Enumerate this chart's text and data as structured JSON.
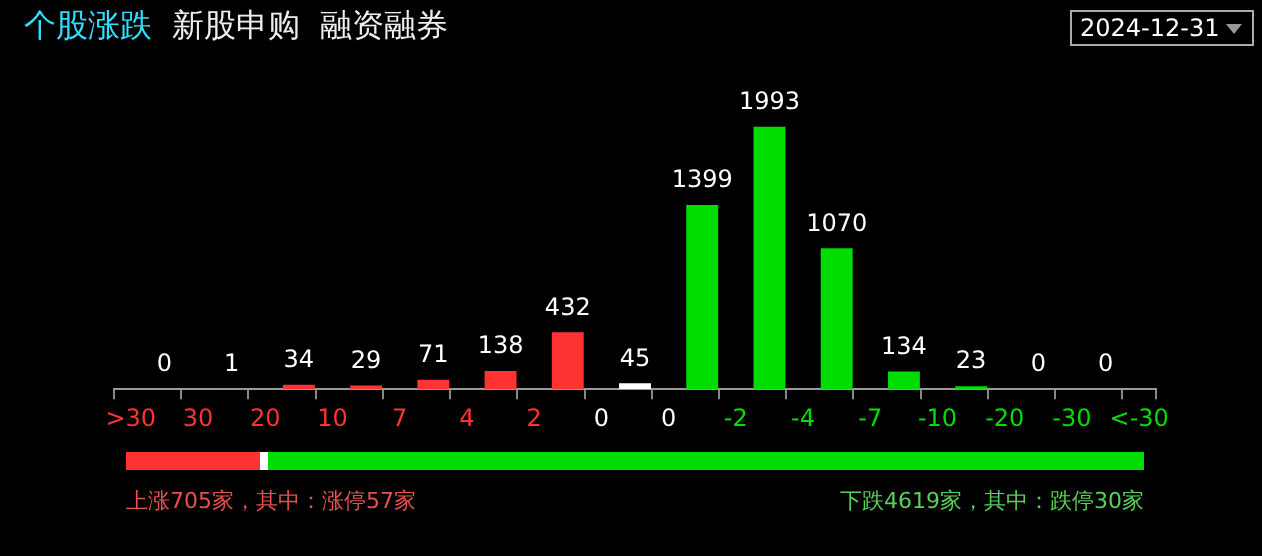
{
  "chart_data": {
    "type": "bar",
    "title": "个股涨跌",
    "categories": [
      ">30",
      null,
      "30",
      null,
      "20",
      null,
      "10",
      null,
      "7",
      null,
      "4",
      null,
      "2",
      null,
      "0",
      null,
      "0",
      null,
      "-2",
      null,
      "-4",
      null,
      "-7",
      null,
      "-10",
      null,
      "-20",
      null,
      "-30",
      null,
      "<-30"
    ],
    "values": [
      null,
      0,
      null,
      1,
      null,
      34,
      null,
      29,
      null,
      71,
      null,
      138,
      null,
      432,
      null,
      45,
      null,
      1399,
      null,
      1993,
      null,
      1070,
      null,
      134,
      null,
      23,
      null,
      0,
      null,
      0,
      null
    ],
    "colors": [
      "#ff3333",
      "#ff3333",
      "#ff3333",
      "#ff3333",
      "#ff3333",
      "#ff3333",
      "#ff3333",
      "#ff3333",
      "#ff3333",
      "#ff3333",
      "#ff3333",
      "#ff3333",
      "#ff3333",
      "#ff3333",
      "#ffffff",
      "#ffffff",
      "#ffffff",
      "#00dd00",
      "#00dd00",
      "#00dd00",
      "#00dd00",
      "#00dd00",
      "#00dd00",
      "#00dd00",
      "#00dd00",
      "#00dd00",
      "#00dd00",
      "#00dd00",
      "#00dd00",
      "#00dd00",
      "#00dd00"
    ],
    "data_labels": true,
    "grid": false,
    "legend": false,
    "tick_labels": "x",
    "annotations": [
      "新股申购",
      "融资融券",
      "2024-12-31",
      "上涨705家，其中：涨停57家",
      "下跌4619家，其中：跌停30家"
    ]
  }
}
